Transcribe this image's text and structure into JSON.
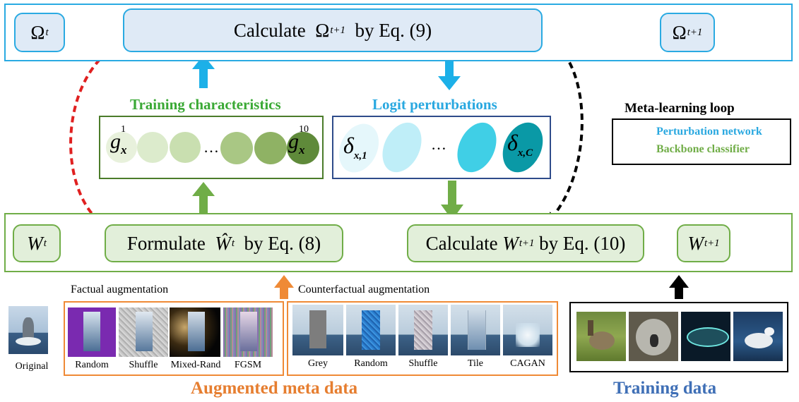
{
  "top": {
    "omega_t": {
      "base": "Ω",
      "sup": "t"
    },
    "calc_omega": {
      "pre": "Calculate",
      "base": "Ω",
      "sup": "t+1",
      "post": "by Eq. (9)"
    },
    "omega_t1": {
      "base": "Ω",
      "sup": "t+1"
    }
  },
  "middle": {
    "training_characteristics_label": "Training characteristics",
    "logit_perturbations_label": "Logit perturbations",
    "g_first": {
      "base": "g",
      "sub": "x",
      "sup": "1"
    },
    "g_last": {
      "base": "g",
      "sub": "x",
      "sup": "10"
    },
    "delta_first": {
      "base": "δ",
      "sub": "x,1"
    },
    "delta_last": {
      "base": "δ",
      "sub": "x,C"
    },
    "ellipsis": "…",
    "circle_colors": [
      "#e8f1dc",
      "#dcebcc",
      "#c9dfb0",
      "#a9c784",
      "#8fb264",
      "#5f8a3a"
    ],
    "oval_colors": [
      "#e5f7fb",
      "#bfeef8",
      "#40cfe6",
      "#0a99a6"
    ]
  },
  "legend": {
    "title": "Meta-learning loop",
    "perturbation": "Perturbation network",
    "backbone": "Backbone classifier"
  },
  "bottom": {
    "w_t": {
      "base": "W",
      "sup": "t"
    },
    "formulate": {
      "pre": "Formulate",
      "base": "Ŵ",
      "sup": "t",
      "post": "by Eq. (8)"
    },
    "calc_w": {
      "pre": "Calculate",
      "base": "W",
      "sup": "t+1",
      "post": "by Eq. (10)"
    },
    "w_t1": {
      "base": "W",
      "sup": "t+1"
    }
  },
  "augment": {
    "original_caption": "Original",
    "factual_title": "Factual augmentation",
    "factual_items": [
      "Random",
      "Shuffle",
      "Mixed-Rand",
      "FGSM"
    ],
    "counterfactual_title": "Counterfactual augmentation",
    "counterfactual_items": [
      "Grey",
      "Random",
      "Shuffle",
      "Tile",
      "CAGAN"
    ],
    "augmented_label": "Augmented meta data",
    "training_label": "Training data"
  }
}
